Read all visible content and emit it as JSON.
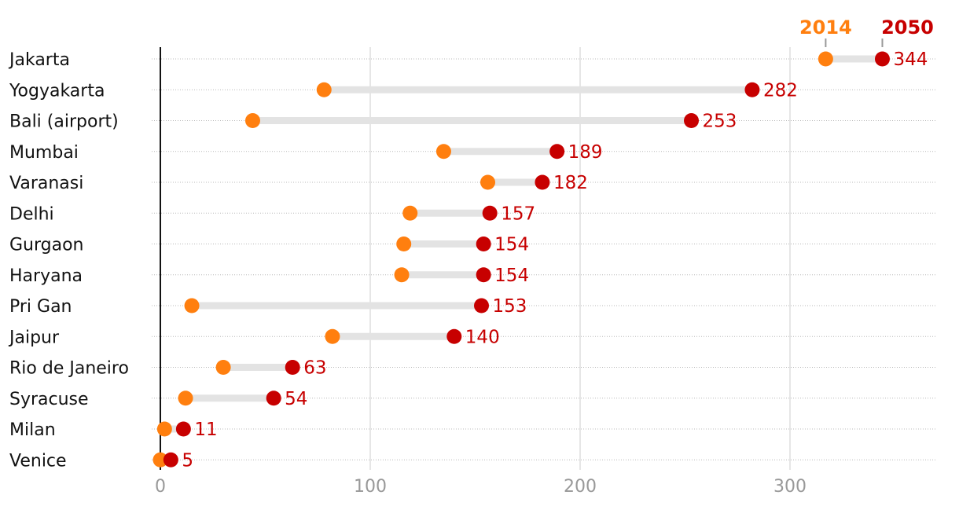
{
  "chart_data": {
    "type": "dumbbell",
    "series": [
      {
        "name": "2014",
        "color": "#ff7f0f"
      },
      {
        "name": "2050",
        "color": "#c70000"
      }
    ],
    "categories": [
      "Jakarta",
      "Yogyakarta",
      "Bali (airport)",
      "Mumbai",
      "Varanasi",
      "Delhi",
      "Gurgaon",
      "Haryana",
      "Pri Gan",
      "Jaipur",
      "Rio de Janeiro",
      "Syracuse",
      "Milan",
      "Venice"
    ],
    "values_2014": [
      317,
      78,
      44,
      135,
      156,
      119,
      116,
      115,
      15,
      82,
      30,
      12,
      2,
      0
    ],
    "values_2050": [
      344,
      282,
      253,
      189,
      182,
      157,
      154,
      154,
      153,
      140,
      63,
      54,
      11,
      5
    ],
    "value_labels": [
      "344",
      "282",
      "253",
      "189",
      "182",
      "157",
      "154",
      "154",
      "153",
      "140",
      "63",
      "54",
      "11",
      "5"
    ],
    "xticks": [
      0,
      100,
      200,
      300
    ],
    "xtick_labels": [
      "0",
      "100",
      "200",
      "300"
    ],
    "xlim": [
      0,
      370
    ],
    "grid": true,
    "legend": "top-right"
  }
}
